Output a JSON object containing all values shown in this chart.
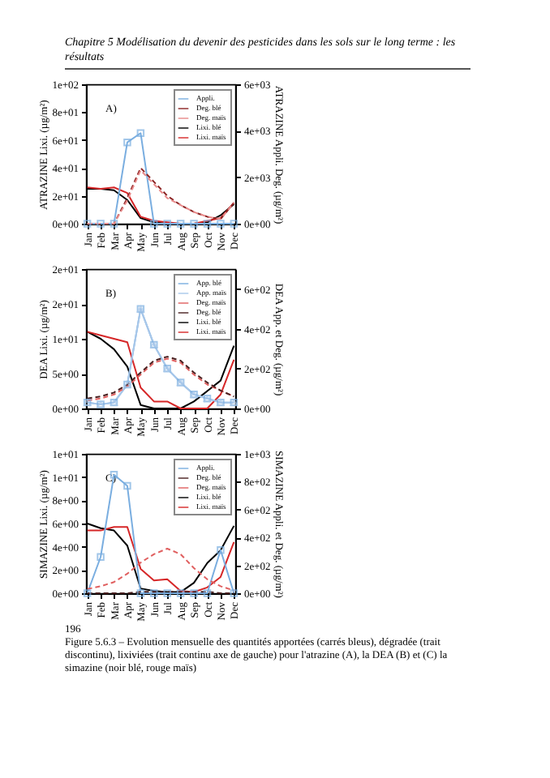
{
  "chart_data": [
    {
      "type": "line",
      "title": "Chapitre 5 Modélisation du devenir des pesticides dans les sols sur le long terme : les résultats",
      "ylabel": "ATRAZINE Lixi. (µg/m²)",
      "y2label": "ATRAZINE Appli. Deg. (µg/m²)",
      "annotations": [
        "A)"
      ],
      "legend": "top right",
      "grid": false,
      "categories": [
        "Jan",
        "Feb",
        "Mar",
        "Apr",
        "May",
        "Jun",
        "Jul",
        "Aug",
        "Sep",
        "Oct",
        "Nov",
        "Dec"
      ],
      "ylim": [
        0,
        100
      ],
      "yticks": [
        {
          "value": 0,
          "label": "0e+00"
        },
        {
          "value": 20,
          "label": "2e+01"
        },
        {
          "value": 40,
          "label": "4e+01"
        },
        {
          "value": 60,
          "label": "6e+01"
        },
        {
          "value": 80,
          "label": "8e+01"
        },
        {
          "value": 100,
          "label": "1e+02"
        }
      ],
      "y2lim": [
        0,
        6000
      ],
      "y2ticks": [
        {
          "value": 0,
          "label": "0e+00"
        },
        {
          "value": 2000,
          "label": "2e+03"
        },
        {
          "value": 4000,
          "label": "4e+03"
        },
        {
          "value": 6000,
          "label": "6e+03"
        }
      ],
      "series": [
        {
          "name": "Appli.",
          "axis": "y2",
          "marker": "square",
          "line_style": "solid",
          "color": "#7aaee0",
          "values": [
            0,
            0,
            0,
            3500,
            3900,
            0,
            0,
            0,
            0,
            0,
            0,
            0
          ]
        },
        {
          "name": "Deg. blé",
          "axis": "y2",
          "marker": "none",
          "line_style": "dashed",
          "color": "#8b2323",
          "values": [
            0,
            0,
            0,
            1100,
            2400,
            1800,
            1200,
            800,
            500,
            300,
            200,
            900
          ]
        },
        {
          "name": "Deg. maïs",
          "axis": "y2",
          "marker": "none",
          "line_style": "dashed",
          "color": "#e88a8a",
          "values": [
            0,
            0,
            0,
            1000,
            2300,
            1700,
            1100,
            800,
            500,
            300,
            200,
            900
          ]
        },
        {
          "name": "Lixi. blé",
          "axis": "y",
          "marker": "none",
          "line_style": "solid",
          "color": "#000000",
          "values": [
            25,
            25,
            24,
            17,
            4,
            1,
            0,
            0,
            0,
            1,
            6,
            14
          ]
        },
        {
          "name": "Lixi. maïs",
          "axis": "y",
          "marker": "none",
          "line_style": "solid",
          "color": "#d62728",
          "values": [
            26,
            25,
            26,
            22,
            5,
            2,
            1,
            0,
            0,
            2,
            4,
            15
          ]
        }
      ]
    },
    {
      "type": "line",
      "ylabel": "DEA Lixi. (µg/m²)",
      "y2label": "DEA App. et Deg. (µg/m²)",
      "annotations": [
        "B)"
      ],
      "legend": "top right",
      "grid": false,
      "categories": [
        "Jan",
        "Feb",
        "Mar",
        "Apr",
        "May",
        "Jun",
        "Jul",
        "Aug",
        "Sep",
        "Oct",
        "Nov",
        "Dec"
      ],
      "ylim": [
        0,
        20
      ],
      "yticks": [
        {
          "value": 0,
          "label": "0e+00"
        },
        {
          "value": 5,
          "label": "5e+00"
        },
        {
          "value": 10,
          "label": "1e+01"
        },
        {
          "value": 15,
          "label": "2e+01"
        },
        {
          "value": 20,
          "label": "2e+01"
        }
      ],
      "y2lim": [
        0,
        700
      ],
      "y2ticks": [
        {
          "value": 0,
          "label": "0e+00"
        },
        {
          "value": 200,
          "label": "2e+02"
        },
        {
          "value": 400,
          "label": "4e+02"
        },
        {
          "value": 600,
          "label": "6e+02"
        }
      ],
      "series": [
        {
          "name": "App. blé",
          "axis": "y2",
          "marker": "square",
          "line_style": "solid",
          "color": "#7aaee0",
          "values": [
            30,
            20,
            30,
            120,
            500,
            320,
            200,
            130,
            70,
            50,
            30,
            30
          ]
        },
        {
          "name": "App. maïs",
          "axis": "y2",
          "marker": "triangle",
          "line_style": "solid",
          "color": "#a9c8ea",
          "values": [
            30,
            20,
            30,
            120,
            500,
            320,
            200,
            130,
            70,
            50,
            30,
            30
          ]
        },
        {
          "name": "Deg. maïs",
          "axis": "y2",
          "marker": "none",
          "line_style": "dashed",
          "color": "#e06060",
          "values": [
            40,
            50,
            70,
            110,
            170,
            230,
            250,
            230,
            170,
            120,
            90,
            60
          ]
        },
        {
          "name": "Deg. blé",
          "axis": "y2",
          "marker": "none",
          "line_style": "dashed",
          "color": "#4a2020",
          "values": [
            50,
            60,
            80,
            120,
            180,
            240,
            260,
            240,
            180,
            130,
            90,
            60
          ]
        },
        {
          "name": "Lixi. blé",
          "axis": "y",
          "marker": "none",
          "line_style": "solid",
          "color": "#000000",
          "values": [
            11,
            10,
            8.5,
            6,
            0.5,
            0,
            0,
            0,
            1,
            2.5,
            4,
            9
          ]
        },
        {
          "name": "Lixi. maïs",
          "axis": "y",
          "marker": "none",
          "line_style": "solid",
          "color": "#d62728",
          "values": [
            11,
            10.5,
            10,
            9.5,
            3,
            1,
            1,
            0,
            0,
            0,
            2,
            7
          ]
        }
      ]
    },
    {
      "type": "line",
      "ylabel": "SIMAZINE Lixi. (µg/m²)",
      "y2label": "SIMAZINE Appli. et Deg. (µg/m²)",
      "annotations": [
        "C)",
        "196",
        "Figure 5.6.3 – Evolution mensuelle des quantités apportées (carrés bleus), dégradée (trait discontinu), lixiviées (trait continu axe de gauche) pour l'atrazine (A), la DEA (B) et (C) la simazine (noir blé, rouge maïs)"
      ],
      "legend": "top right",
      "grid": false,
      "categories": [
        "Jan",
        "Feb",
        "Mar",
        "Apr",
        "May",
        "Jun",
        "Jul",
        "Aug",
        "Sep",
        "Oct",
        "Nov",
        "Dec"
      ],
      "ylim": [
        0,
        12
      ],
      "yticks": [
        {
          "value": 0,
          "label": "0e+00"
        },
        {
          "value": 2,
          "label": "2e+00"
        },
        {
          "value": 4,
          "label": "4e+00"
        },
        {
          "value": 6,
          "label": "6e+00"
        },
        {
          "value": 8,
          "label": "8e+00"
        },
        {
          "value": 10,
          "label": "1e+01"
        },
        {
          "value": 12,
          "label": "1e+01"
        }
      ],
      "y2lim": [
        0,
        1000
      ],
      "y2ticks": [
        {
          "value": 0,
          "label": "0e+00"
        },
        {
          "value": 200,
          "label": "2e+02"
        },
        {
          "value": 400,
          "label": "4e+02"
        },
        {
          "value": 600,
          "label": "6e+02"
        },
        {
          "value": 800,
          "label": "8e+02"
        },
        {
          "value": 1000,
          "label": "1e+03"
        }
      ],
      "series": [
        {
          "name": "Appli.",
          "axis": "y2",
          "marker": "square",
          "line_style": "solid",
          "color": "#7aaee0",
          "values": [
            0,
            260,
            850,
            770,
            0,
            0,
            0,
            0,
            0,
            0,
            310,
            0
          ]
        },
        {
          "name": "Deg. blé",
          "axis": "y2",
          "marker": "none",
          "line_style": "dashed",
          "color": "#4a2020",
          "values": [
            0,
            0,
            0,
            0,
            10,
            10,
            10,
            10,
            10,
            10,
            0,
            0
          ]
        },
        {
          "name": "Deg. maïs",
          "axis": "y2",
          "marker": "none",
          "line_style": "dashed",
          "color": "#e06060",
          "values": [
            30,
            50,
            80,
            140,
            220,
            280,
            320,
            280,
            180,
            100,
            50,
            20
          ]
        },
        {
          "name": "Lixi. blé",
          "axis": "y",
          "marker": "none",
          "line_style": "solid",
          "color": "#000000",
          "values": [
            6,
            5.6,
            5.4,
            4.1,
            0.4,
            0.2,
            0.1,
            0.1,
            0.9,
            2.6,
            3.7,
            5.8
          ]
        },
        {
          "name": "Lixi. maïs",
          "axis": "y",
          "marker": "none",
          "line_style": "solid",
          "color": "#d62728",
          "values": [
            5.4,
            5.4,
            5.7,
            5.7,
            2.1,
            1.1,
            1.2,
            0.2,
            0.1,
            0.5,
            1.4,
            4.4
          ]
        }
      ]
    }
  ]
}
